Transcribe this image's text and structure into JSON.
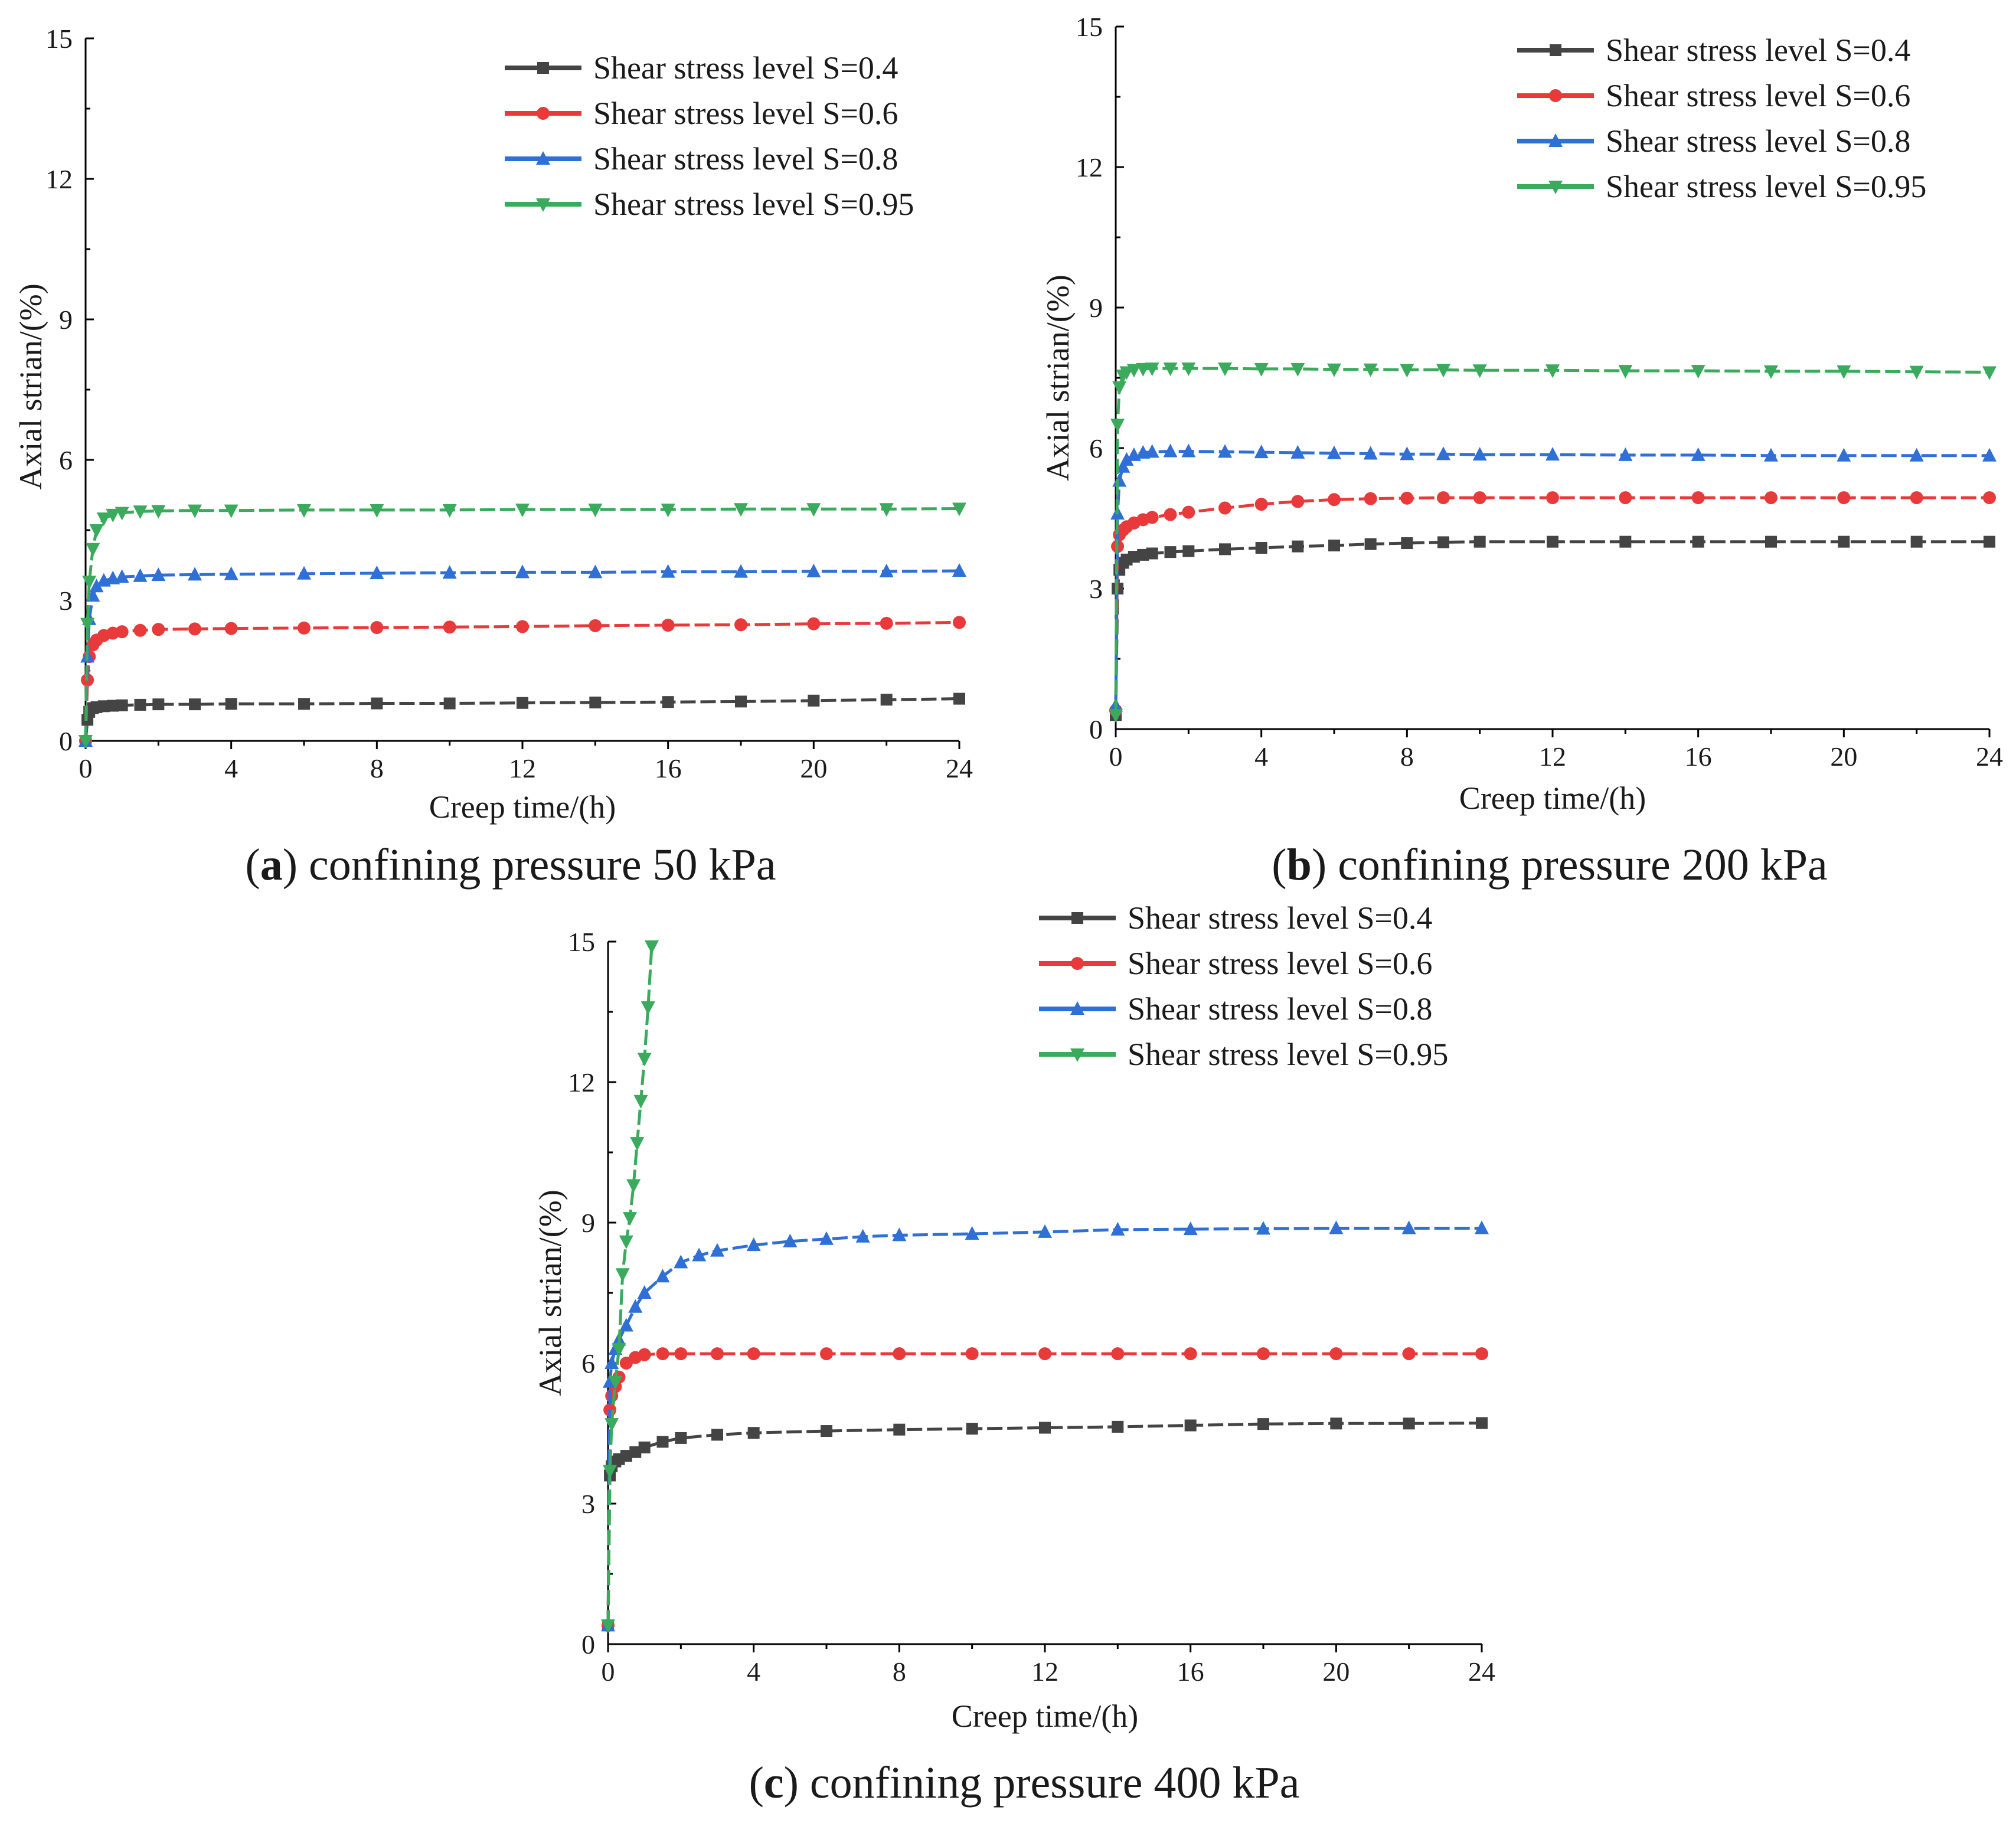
{
  "colors": {
    "s04": "#444444",
    "s06": "#e83a3a",
    "s08": "#2f6fd6",
    "s095": "#3aaa5c"
  },
  "chart_data": [
    {
      "type": "line",
      "panel_letter": "a",
      "caption_text": " confining pressure 50 kPa",
      "xlabel": "Creep time/(h)",
      "ylabel": "Axial strian/(%)",
      "xlim": [
        0,
        24
      ],
      "ylim": [
        0,
        15
      ],
      "xticks": [
        0,
        4,
        8,
        12,
        16,
        20,
        24
      ],
      "yticks": [
        0,
        3,
        6,
        9,
        12,
        15
      ],
      "x": [
        0,
        0.05,
        0.1,
        0.2,
        0.3,
        0.5,
        0.75,
        1,
        1.5,
        2,
        3,
        4,
        6,
        8,
        10,
        12,
        14,
        16,
        18,
        20,
        22,
        24
      ],
      "series": [
        {
          "name": "Shear stress level S=0.4",
          "color_key": "s04",
          "marker": "square",
          "values": [
            0,
            0.45,
            0.62,
            0.7,
            0.72,
            0.74,
            0.75,
            0.76,
            0.77,
            0.78,
            0.78,
            0.79,
            0.79,
            0.8,
            0.8,
            0.81,
            0.82,
            0.83,
            0.84,
            0.86,
            0.88,
            0.9
          ]
        },
        {
          "name": "Shear stress level S=0.6",
          "color_key": "s06",
          "marker": "circle",
          "values": [
            0,
            1.3,
            1.8,
            2.05,
            2.15,
            2.25,
            2.3,
            2.33,
            2.36,
            2.38,
            2.39,
            2.4,
            2.41,
            2.42,
            2.43,
            2.44,
            2.46,
            2.47,
            2.48,
            2.5,
            2.51,
            2.53
          ]
        },
        {
          "name": "Shear stress level S=0.8",
          "color_key": "s08",
          "marker": "triangle-up",
          "values": [
            0,
            1.8,
            2.6,
            3.1,
            3.3,
            3.42,
            3.47,
            3.5,
            3.52,
            3.54,
            3.55,
            3.56,
            3.57,
            3.58,
            3.59,
            3.6,
            3.6,
            3.61,
            3.61,
            3.62,
            3.62,
            3.63
          ]
        },
        {
          "name": "Shear stress level S=0.95",
          "color_key": "s095",
          "marker": "triangle-down",
          "values": [
            0,
            2.5,
            3.4,
            4.1,
            4.5,
            4.75,
            4.83,
            4.87,
            4.9,
            4.91,
            4.92,
            4.92,
            4.93,
            4.93,
            4.93,
            4.94,
            4.94,
            4.94,
            4.95,
            4.95,
            4.95,
            4.96
          ]
        }
      ]
    },
    {
      "type": "line",
      "panel_letter": "b",
      "caption_text": " confining pressure 200 kPa",
      "xlabel": "Creep time/(h)",
      "ylabel": "Axial strian/(%)",
      "xlim": [
        0,
        24
      ],
      "ylim": [
        0,
        15
      ],
      "xticks": [
        0,
        4,
        8,
        12,
        16,
        20,
        24
      ],
      "yticks": [
        0,
        3,
        6,
        9,
        12,
        15
      ],
      "x": [
        0,
        0.05,
        0.1,
        0.2,
        0.3,
        0.5,
        0.75,
        1,
        1.5,
        2,
        3,
        4,
        5,
        6,
        7,
        8,
        9,
        10,
        12,
        14,
        16,
        18,
        20,
        22,
        24
      ],
      "series": [
        {
          "name": "Shear stress level S=0.4",
          "color_key": "s04",
          "marker": "square",
          "values": [
            0.3,
            3.0,
            3.4,
            3.55,
            3.62,
            3.68,
            3.72,
            3.75,
            3.78,
            3.8,
            3.84,
            3.87,
            3.9,
            3.92,
            3.95,
            3.97,
            3.99,
            4.0,
            4.0,
            4.0,
            4.0,
            4.0,
            4.0,
            4.0,
            4.0
          ]
        },
        {
          "name": "Shear stress level S=0.6",
          "color_key": "s06",
          "marker": "circle",
          "values": [
            0.4,
            3.9,
            4.15,
            4.25,
            4.32,
            4.4,
            4.47,
            4.52,
            4.58,
            4.63,
            4.72,
            4.8,
            4.86,
            4.9,
            4.92,
            4.93,
            4.94,
            4.94,
            4.94,
            4.94,
            4.94,
            4.94,
            4.94,
            4.94,
            4.94
          ]
        },
        {
          "name": "Shear stress level S=0.8",
          "color_key": "s08",
          "marker": "triangle-up",
          "values": [
            0.5,
            4.6,
            5.3,
            5.6,
            5.75,
            5.85,
            5.9,
            5.92,
            5.93,
            5.93,
            5.92,
            5.91,
            5.9,
            5.89,
            5.88,
            5.87,
            5.87,
            5.86,
            5.86,
            5.85,
            5.85,
            5.84,
            5.84,
            5.84,
            5.84
          ]
        },
        {
          "name": "Shear stress level S=0.95",
          "color_key": "s095",
          "marker": "triangle-down",
          "values": [
            0.3,
            6.5,
            7.3,
            7.55,
            7.62,
            7.67,
            7.69,
            7.7,
            7.7,
            7.7,
            7.7,
            7.69,
            7.69,
            7.68,
            7.68,
            7.67,
            7.67,
            7.66,
            7.66,
            7.65,
            7.65,
            7.64,
            7.64,
            7.63,
            7.62
          ]
        }
      ]
    },
    {
      "type": "line",
      "panel_letter": "c",
      "caption_text": " confining pressure 400 kPa",
      "xlabel": "Creep time/(h)",
      "ylabel": "Axial strian/(%)",
      "xlim": [
        0,
        24
      ],
      "ylim": [
        0,
        15
      ],
      "xticks": [
        0,
        4,
        8,
        12,
        16,
        20,
        24
      ],
      "yticks": [
        0,
        3,
        6,
        9,
        12,
        15
      ],
      "series": [
        {
          "name": "Shear stress level S=0.4",
          "color_key": "s04",
          "marker": "square",
          "x": [
            0,
            0.05,
            0.1,
            0.2,
            0.3,
            0.5,
            0.75,
            1,
            1.5,
            2,
            3,
            4,
            6,
            8,
            10,
            12,
            14,
            16,
            18,
            20,
            22,
            24
          ],
          "values": [
            0.4,
            3.6,
            3.8,
            3.9,
            3.95,
            4.02,
            4.1,
            4.2,
            4.32,
            4.4,
            4.47,
            4.51,
            4.55,
            4.58,
            4.6,
            4.62,
            4.64,
            4.67,
            4.7,
            4.71,
            4.71,
            4.72
          ]
        },
        {
          "name": "Shear stress level S=0.6",
          "color_key": "s06",
          "marker": "circle",
          "x": [
            0,
            0.05,
            0.1,
            0.2,
            0.3,
            0.5,
            0.75,
            1,
            1.5,
            2,
            3,
            4,
            6,
            8,
            10,
            12,
            14,
            16,
            18,
            20,
            22,
            24
          ],
          "values": [
            0.4,
            5.0,
            5.3,
            5.5,
            5.7,
            6.0,
            6.12,
            6.18,
            6.2,
            6.2,
            6.2,
            6.2,
            6.2,
            6.2,
            6.2,
            6.2,
            6.2,
            6.2,
            6.2,
            6.2,
            6.2,
            6.2
          ]
        },
        {
          "name": "Shear stress level S=0.8",
          "color_key": "s08",
          "marker": "triangle-up",
          "x": [
            0,
            0.05,
            0.1,
            0.2,
            0.3,
            0.5,
            0.75,
            1,
            1.5,
            2,
            2.5,
            3,
            4,
            5,
            6,
            7,
            8,
            10,
            12,
            14,
            16,
            18,
            20,
            22,
            24
          ],
          "values": [
            0.4,
            5.6,
            6.0,
            6.3,
            6.5,
            6.8,
            7.2,
            7.5,
            7.85,
            8.15,
            8.3,
            8.4,
            8.52,
            8.6,
            8.65,
            8.7,
            8.73,
            8.76,
            8.8,
            8.85,
            8.86,
            8.87,
            8.88,
            8.88,
            8.88
          ]
        },
        {
          "name": "Shear stress level S=0.95",
          "color_key": "s095",
          "marker": "triangle-down",
          "x": [
            0,
            0.05,
            0.1,
            0.2,
            0.3,
            0.4,
            0.5,
            0.6,
            0.7,
            0.8,
            0.9,
            1.0,
            1.1,
            1.2
          ],
          "values": [
            0.4,
            3.7,
            4.7,
            5.6,
            6.3,
            7.9,
            8.6,
            9.1,
            9.8,
            10.7,
            11.6,
            12.5,
            13.6,
            14.9
          ]
        }
      ]
    }
  ]
}
